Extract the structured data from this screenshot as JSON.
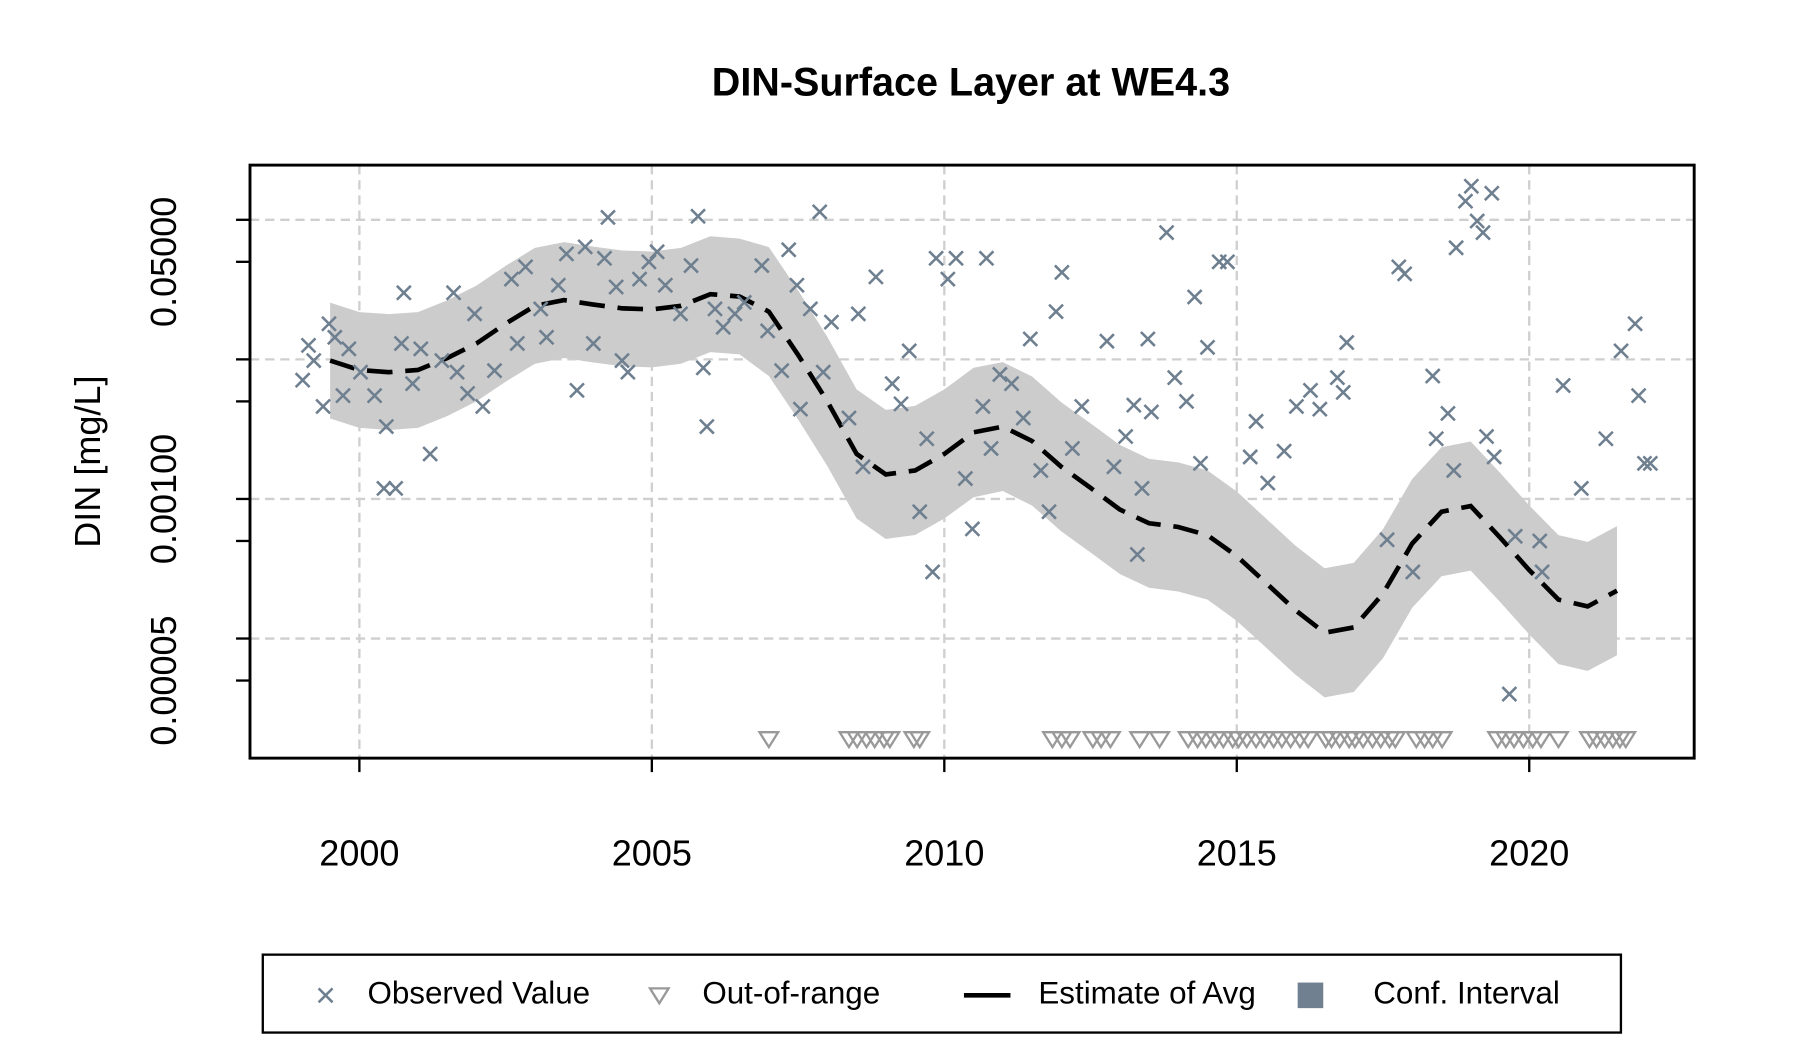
{
  "chart_data": {
    "type": "scatter",
    "title": "DIN-Surface Layer at WE4.3",
    "y_label": "DIN [mg/L]",
    "ylog": true,
    "grid": true,
    "xlim": [
      1998.13,
      2022.82
    ],
    "ylim": [
      1.39e-05,
      0.2465
    ],
    "xticks": [
      2000,
      2005,
      2010,
      2015,
      2020
    ],
    "yticks": [
      {
        "value": 0.05,
        "label": "0.05000"
      },
      {
        "value": 0.001,
        "label": "0.00100"
      },
      {
        "value": 5e-05,
        "label": "0.00005"
      }
    ],
    "yticks_unlabeled": [
      0.1,
      0.01,
      0.005,
      0.0005,
      0.0001
    ],
    "ygrid": [
      0.1,
      0.01,
      0.001,
      0.0001
    ],
    "series": [
      {
        "name": "Observed Value",
        "kind": "points",
        "marker": "x",
        "color": "#6e7f90",
        "x": [
          1999.03,
          1999.13,
          1999.22,
          1999.38,
          1999.48,
          1999.58,
          1999.72,
          1999.82,
          2000.02,
          2000.26,
          2000.42,
          2000.46,
          2000.62,
          2000.72,
          2000.76,
          2000.91,
          2001.05,
          2001.21,
          2001.41,
          2001.61,
          2001.67,
          2001.85,
          2001.97,
          2002.11,
          2002.31,
          2002.6,
          2002.7,
          2002.84,
          2003.1,
          2003.2,
          2003.4,
          2003.54,
          2003.72,
          2003.86,
          2004.0,
          2004.19,
          2004.25,
          2004.39,
          2004.49,
          2004.59,
          2004.79,
          2004.95,
          2005.09,
          2005.23,
          2005.49,
          2005.67,
          2005.79,
          2005.88,
          2005.94,
          2006.08,
          2006.22,
          2006.42,
          2006.58,
          2006.88,
          2006.98,
          2007.22,
          2007.34,
          2007.48,
          2007.54,
          2007.71,
          2007.87,
          2007.93,
          2008.07,
          2008.37,
          2008.53,
          2008.61,
          2008.83,
          2009.11,
          2009.26,
          2009.4,
          2009.58,
          2009.7,
          2009.8,
          2009.86,
          2010.06,
          2010.2,
          2010.36,
          2010.48,
          2010.66,
          2010.72,
          2010.8,
          2010.95,
          2011.15,
          2011.35,
          2011.47,
          2011.65,
          2011.79,
          2011.91,
          2012.01,
          2012.19,
          2012.35,
          2012.78,
          2012.9,
          2013.1,
          2013.24,
          2013.3,
          2013.38,
          2013.48,
          2013.54,
          2013.8,
          2013.94,
          2014.14,
          2014.28,
          2014.38,
          2014.5,
          2014.7,
          2014.84,
          2015.23,
          2015.33,
          2015.53,
          2015.81,
          2016.02,
          2016.26,
          2016.42,
          2016.72,
          2016.82,
          2016.88,
          2017.57,
          2017.77,
          2017.87,
          2018.01,
          2018.35,
          2018.41,
          2018.61,
          2018.71,
          2018.75,
          2018.91,
          2019.01,
          2019.11,
          2019.21,
          2019.27,
          2019.36,
          2019.4,
          2019.66,
          2019.76,
          2020.18,
          2020.22,
          2020.58,
          2020.89,
          2021.31,
          2021.57,
          2021.81,
          2021.87,
          2021.97,
          2022.07
        ],
        "values": [
          0.0071,
          0.0126,
          0.0098,
          0.0046,
          0.018,
          0.0144,
          0.0055,
          0.0119,
          0.0081,
          0.0055,
          0.00119,
          0.0033,
          0.00119,
          0.013,
          0.03,
          0.0067,
          0.0119,
          0.0021,
          0.0098,
          0.03,
          0.0081,
          0.0057,
          0.0212,
          0.0046,
          0.0083,
          0.0376,
          0.013,
          0.046,
          0.023,
          0.0144,
          0.034,
          0.057,
          0.006,
          0.064,
          0.013,
          0.053,
          0.104,
          0.033,
          0.0098,
          0.0081,
          0.0376,
          0.05,
          0.059,
          0.034,
          0.0212,
          0.047,
          0.106,
          0.0087,
          0.0033,
          0.023,
          0.017,
          0.0212,
          0.0256,
          0.047,
          0.016,
          0.0083,
          0.061,
          0.034,
          0.0044,
          0.023,
          0.114,
          0.0081,
          0.0185,
          0.0038,
          0.0212,
          0.0017,
          0.039,
          0.0067,
          0.0048,
          0.0115,
          0.00081,
          0.0027,
          0.0003,
          0.053,
          0.0376,
          0.053,
          0.0014,
          0.00061,
          0.0046,
          0.053,
          0.0023,
          0.0078,
          0.0067,
          0.0038,
          0.014,
          0.0016,
          0.00081,
          0.022,
          0.042,
          0.0023,
          0.0046,
          0.0135,
          0.0017,
          0.0028,
          0.0047,
          0.0004,
          0.00119,
          0.014,
          0.0042,
          0.081,
          0.0074,
          0.005,
          0.028,
          0.0018,
          0.0122,
          0.05,
          0.05,
          0.002,
          0.0036,
          0.0013,
          0.0022,
          0.0046,
          0.006,
          0.0044,
          0.0074,
          0.0058,
          0.0132,
          0.00051,
          0.046,
          0.041,
          0.0003,
          0.0076,
          0.0027,
          0.0041,
          0.0016,
          0.063,
          0.136,
          0.174,
          0.098,
          0.081,
          0.0028,
          0.155,
          0.002,
          4e-05,
          0.00054,
          0.0005,
          0.0003,
          0.0065,
          0.00119,
          0.0027,
          0.0115,
          0.018,
          0.0055,
          0.0018,
          0.0018
        ]
      },
      {
        "name": "Out-of-range",
        "kind": "points",
        "marker": "triangle-down",
        "color": "#999999",
        "x": [
          2007.0,
          2008.37,
          2008.51,
          2008.67,
          2008.81,
          2008.97,
          2009.07,
          2009.48,
          2009.58,
          2011.85,
          2012.01,
          2012.15,
          2012.54,
          2012.68,
          2012.84,
          2013.34,
          2013.68,
          2014.17,
          2014.33,
          2014.47,
          2014.63,
          2014.77,
          2014.93,
          2015.03,
          2015.17,
          2015.33,
          2015.47,
          2015.63,
          2015.77,
          2015.92,
          2016.08,
          2016.22,
          2016.52,
          2016.62,
          2016.76,
          2016.92,
          2017.02,
          2017.16,
          2017.32,
          2017.46,
          2017.61,
          2017.71,
          2018.07,
          2018.21,
          2018.35,
          2018.51,
          2019.46,
          2019.6,
          2019.74,
          2019.9,
          2020.06,
          2020.2,
          2020.5,
          2021.03,
          2021.15,
          2021.29,
          2021.43,
          2021.55,
          2021.65
        ],
        "values": [
          1.9e-05,
          1.9e-05,
          1.9e-05,
          1.9e-05,
          1.9e-05,
          1.9e-05,
          1.9e-05,
          1.9e-05,
          1.9e-05,
          1.9e-05,
          1.9e-05,
          1.9e-05,
          1.9e-05,
          1.9e-05,
          1.9e-05,
          1.9e-05,
          1.9e-05,
          1.9e-05,
          1.9e-05,
          1.9e-05,
          1.9e-05,
          1.9e-05,
          1.9e-05,
          1.9e-05,
          1.9e-05,
          1.9e-05,
          1.9e-05,
          1.9e-05,
          1.9e-05,
          1.9e-05,
          1.9e-05,
          1.9e-05,
          1.9e-05,
          1.9e-05,
          1.9e-05,
          1.9e-05,
          1.9e-05,
          1.9e-05,
          1.9e-05,
          1.9e-05,
          1.9e-05,
          1.9e-05,
          1.9e-05,
          1.9e-05,
          1.9e-05,
          1.9e-05,
          1.9e-05,
          1.9e-05,
          1.9e-05,
          1.9e-05,
          1.9e-05,
          1.9e-05,
          1.9e-05,
          1.9e-05,
          1.9e-05,
          1.9e-05,
          1.9e-05,
          1.9e-05,
          1.9e-05
        ]
      },
      {
        "name": "Estimate of Avg",
        "kind": "line",
        "color": "#000000",
        "x": [
          1999.5,
          2000,
          2000.5,
          2001,
          2001.5,
          2002,
          2002.5,
          2003,
          2003.5,
          2004,
          2004.5,
          2005,
          2005.5,
          2006,
          2006.5,
          2007,
          2007.5,
          2008,
          2008.5,
          2009,
          2009.5,
          2010,
          2010.5,
          2011,
          2011.5,
          2012,
          2012.5,
          2013,
          2013.5,
          2014,
          2014.5,
          2015,
          2015.5,
          2016,
          2016.5,
          2017,
          2017.5,
          2018,
          2018.5,
          2019,
          2019.5,
          2020,
          2020.5,
          2021,
          2021.5
        ],
        "values": [
          0.0098,
          0.0084,
          0.0081,
          0.0084,
          0.0102,
          0.013,
          0.018,
          0.0242,
          0.0266,
          0.0247,
          0.0232,
          0.0228,
          0.0242,
          0.0293,
          0.0282,
          0.022,
          0.0108,
          0.005,
          0.0021,
          0.0015,
          0.0016,
          0.0021,
          0.003,
          0.0033,
          0.0026,
          0.0017,
          0.0012,
          0.00084,
          0.00067,
          0.00063,
          0.00055,
          0.00039,
          0.00025,
          0.00016,
          0.00011,
          0.00012,
          0.00021,
          0.00048,
          0.00081,
          0.00089,
          0.00053,
          0.00031,
          0.00019,
          0.00017,
          0.00022
        ]
      },
      {
        "name": "Conf. Interval",
        "kind": "band",
        "color": "#cccccc",
        "legend_color": "#708090",
        "x": [
          1999.5,
          2000,
          2000.5,
          2001,
          2001.5,
          2002,
          2002.5,
          2003,
          2003.5,
          2004,
          2004.5,
          2005,
          2005.5,
          2006,
          2006.5,
          2007,
          2007.5,
          2008,
          2008.5,
          2009,
          2009.5,
          2010,
          2010.5,
          2011,
          2011.5,
          2012,
          2012.5,
          2013,
          2013.5,
          2014,
          2014.5,
          2015,
          2015.5,
          2016,
          2016.5,
          2017,
          2017.5,
          2018,
          2018.5,
          2019,
          2019.5,
          2020,
          2020.5,
          2021,
          2021.5
        ],
        "lower": [
          0.00377,
          0.00323,
          0.00312,
          0.00323,
          0.00392,
          0.005,
          0.00692,
          0.00931,
          0.01023,
          0.0095,
          0.00892,
          0.00877,
          0.00931,
          0.01127,
          0.01085,
          0.00759,
          0.00372,
          0.00172,
          0.000724,
          0.000517,
          0.000552,
          0.000724,
          0.00103,
          0.00114,
          0.000897,
          0.000586,
          0.000414,
          0.00029,
          0.000231,
          0.000217,
          0.00019,
          0.000134,
          8.62e-05,
          5.52e-05,
          3.79e-05,
          4.14e-05,
          7.24e-05,
          0.000166,
          0.000279,
          0.000307,
          0.000183,
          0.000107,
          6.55e-05,
          5.86e-05,
          7.59e-05
        ],
        "upper": [
          0.0255,
          0.0218,
          0.0211,
          0.0218,
          0.0265,
          0.0338,
          0.0468,
          0.0629,
          0.0692,
          0.0642,
          0.0603,
          0.0593,
          0.0629,
          0.0762,
          0.0733,
          0.0638,
          0.0313,
          0.0145,
          0.00609,
          0.00435,
          0.00464,
          0.00609,
          0.0087,
          0.00957,
          0.00754,
          0.00493,
          0.00348,
          0.00244,
          0.00194,
          0.00183,
          0.0016,
          0.00113,
          0.000725,
          0.000464,
          0.000319,
          0.000348,
          0.000609,
          0.00139,
          0.00235,
          0.00258,
          0.00154,
          0.0009,
          0.000551,
          0.000493,
          0.000638
        ]
      }
    ]
  }
}
